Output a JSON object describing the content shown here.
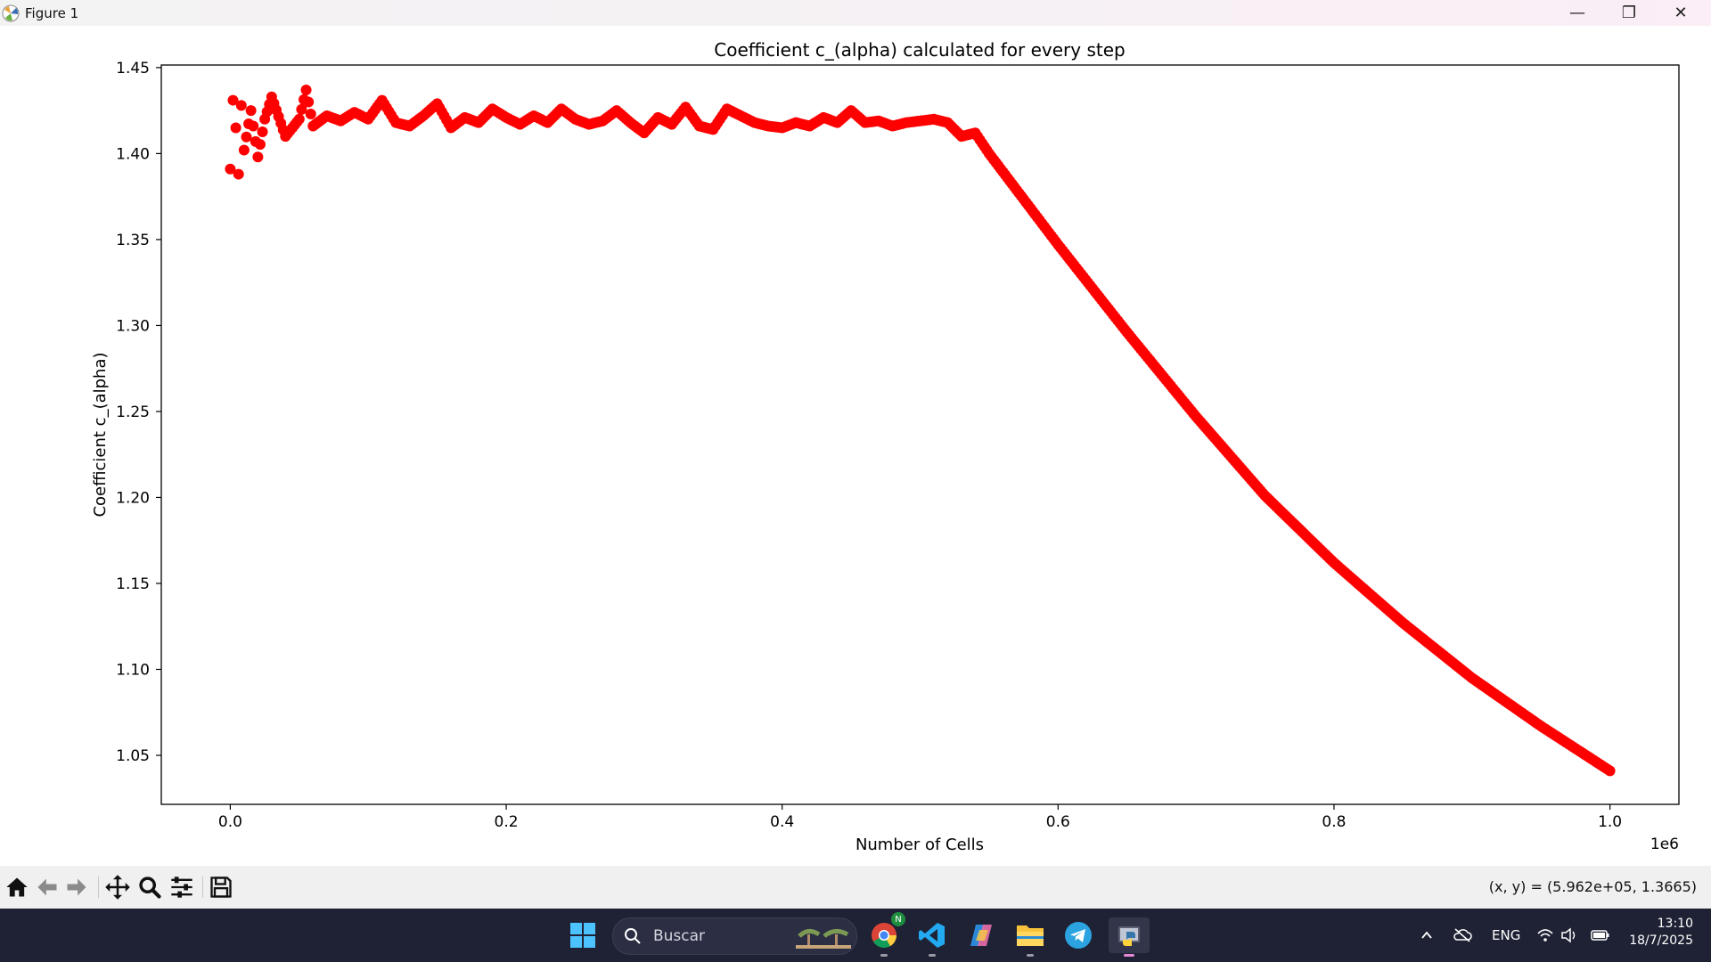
{
  "window": {
    "title": "Figure 1",
    "minimize": "—",
    "maximize": "❐",
    "close": "✕"
  },
  "chart_data": {
    "type": "scatter",
    "title": "Coefficient c_(alpha) calculated for every step",
    "xlabel": "Number of Cells",
    "ylabel": "Coefficient c_(alpha)",
    "x_offset_label": "1e6",
    "xlim": [
      -0.05,
      1.05
    ],
    "ylim": [
      1.0215,
      1.4515
    ],
    "x_ticks": [
      0.0,
      0.2,
      0.4,
      0.6,
      0.8,
      1.0
    ],
    "x_tick_labels": [
      "0.0",
      "0.2",
      "0.4",
      "0.6",
      "0.8",
      "1.0"
    ],
    "y_ticks": [
      1.05,
      1.1,
      1.15,
      1.2,
      1.25,
      1.3,
      1.35,
      1.4,
      1.45
    ],
    "y_tick_labels": [
      "1.05",
      "1.10",
      "1.15",
      "1.20",
      "1.25",
      "1.30",
      "1.35",
      "1.40",
      "1.45"
    ],
    "grid": false,
    "legend": "none",
    "marker_color": "#ff0000",
    "series": [
      {
        "x": [
          0.0,
          0.002,
          0.004,
          0.006,
          0.008,
          0.01,
          0.015,
          0.02,
          0.025,
          0.03,
          0.04,
          0.05,
          0.055,
          0.06,
          0.07,
          0.08,
          0.09,
          0.1,
          0.11,
          0.12,
          0.13,
          0.14,
          0.15,
          0.16,
          0.17,
          0.18,
          0.19,
          0.2,
          0.21,
          0.22,
          0.23,
          0.24,
          0.25,
          0.26,
          0.27,
          0.28,
          0.29,
          0.3,
          0.31,
          0.32,
          0.33,
          0.34,
          0.35,
          0.36,
          0.37,
          0.38,
          0.39,
          0.4,
          0.41,
          0.42,
          0.43,
          0.44,
          0.45,
          0.46,
          0.47,
          0.48,
          0.49,
          0.5,
          0.51,
          0.52,
          0.53,
          0.54,
          0.55,
          0.6,
          0.65,
          0.7,
          0.75,
          0.8,
          0.85,
          0.9,
          0.95,
          1.0
        ],
        "y": [
          1.391,
          1.431,
          1.415,
          1.388,
          1.428,
          1.402,
          1.425,
          1.398,
          1.42,
          1.433,
          1.41,
          1.42,
          1.437,
          1.416,
          1.422,
          1.419,
          1.424,
          1.42,
          1.431,
          1.418,
          1.416,
          1.422,
          1.429,
          1.415,
          1.421,
          1.418,
          1.426,
          1.421,
          1.417,
          1.422,
          1.418,
          1.426,
          1.42,
          1.417,
          1.419,
          1.425,
          1.418,
          1.412,
          1.421,
          1.417,
          1.427,
          1.416,
          1.414,
          1.426,
          1.422,
          1.418,
          1.416,
          1.415,
          1.418,
          1.416,
          1.421,
          1.418,
          1.425,
          1.418,
          1.419,
          1.416,
          1.418,
          1.419,
          1.42,
          1.418,
          1.41,
          1.412,
          1.4,
          1.347,
          1.296,
          1.247,
          1.201,
          1.162,
          1.127,
          1.095,
          1.067,
          1.041
        ]
      }
    ]
  },
  "toolbar": {
    "buttons": [
      "home-icon",
      "back-icon",
      "forward-icon",
      "pan-icon",
      "zoom-icon",
      "configure-subplots-icon",
      "save-icon"
    ],
    "coords": "(x, y) = (5.962e+05, 1.3665)"
  },
  "taskbar": {
    "search_placeholder": "Buscar",
    "apps": [
      "windows-start-icon",
      "chrome-icon",
      "vscode-icon",
      "copilot-icon",
      "file-explorer-icon",
      "telegram-icon",
      "python-icon"
    ],
    "chrome_badge": "N",
    "language": "ENG",
    "time": "13:10",
    "date": "18/7/2025"
  }
}
